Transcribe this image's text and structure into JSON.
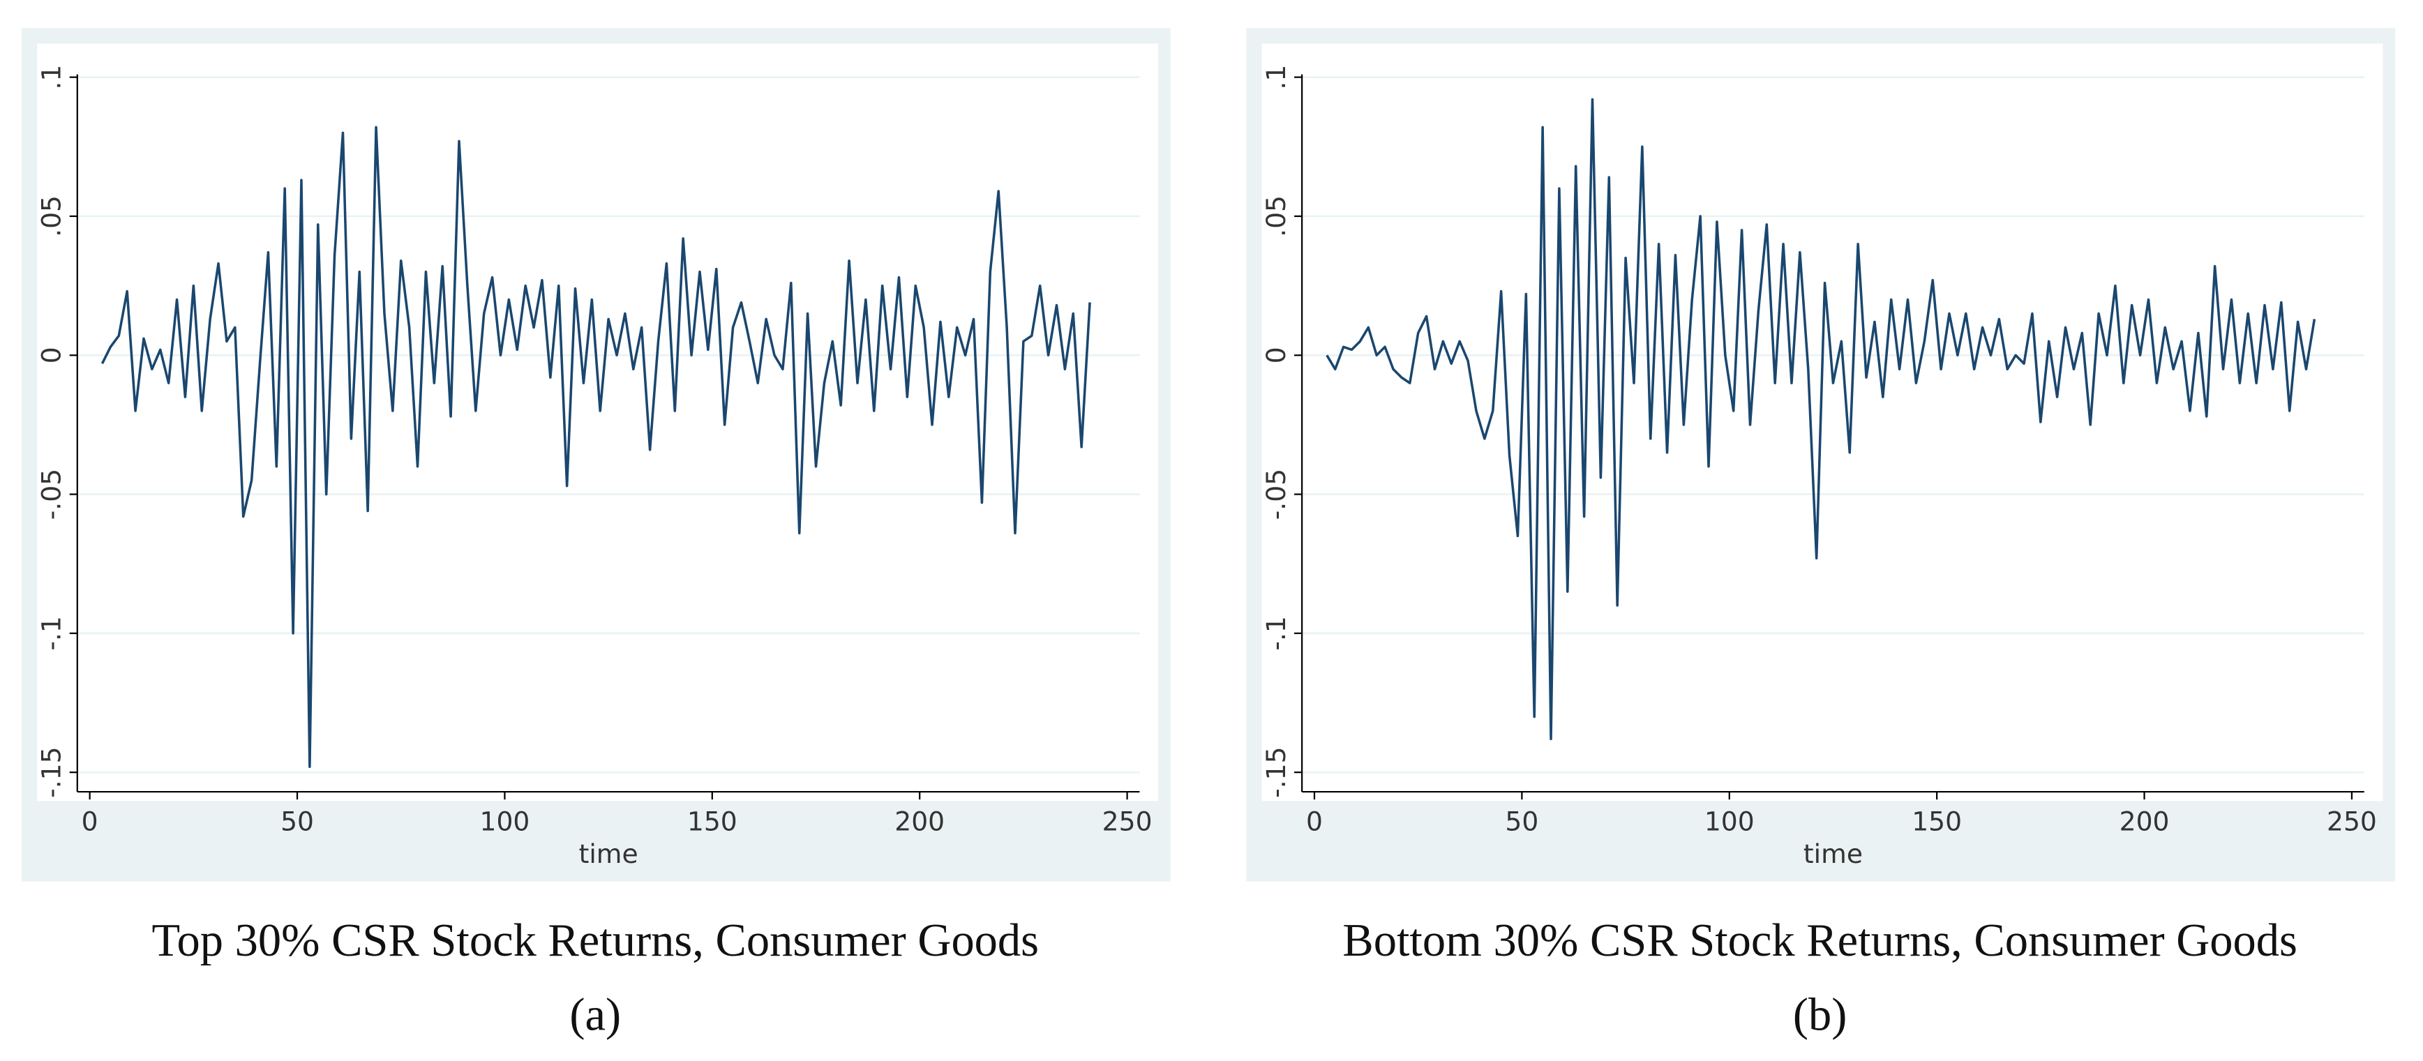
{
  "chart_data": [
    {
      "type": "line",
      "xlabel": "time",
      "caption": "Top 30% CSR Stock Returns, Consumer Goods",
      "sublabel": "(a)",
      "xlim": [
        -3,
        253
      ],
      "ylim": [
        -0.157,
        0.101
      ],
      "xticks": [
        0,
        50,
        100,
        150,
        200,
        250
      ],
      "yticks": [
        {
          "value": -0.15,
          "label": "-.15"
        },
        {
          "value": -0.1,
          "label": "-.1"
        },
        {
          "value": -0.05,
          "label": "-.05"
        },
        0,
        {
          "value": 0.05,
          "label": ".05"
        },
        {
          "value": 0.1,
          "label": ".1"
        }
      ],
      "grid": true,
      "x": [
        3,
        5,
        7,
        9,
        11,
        13,
        15,
        17,
        19,
        21,
        23,
        25,
        27,
        29,
        31,
        33,
        35,
        37,
        39,
        41,
        43,
        45,
        47,
        49,
        51,
        53,
        55,
        57,
        59,
        61,
        63,
        65,
        67,
        69,
        71,
        73,
        75,
        77,
        79,
        81,
        83,
        85,
        87,
        89,
        91,
        93,
        95,
        97,
        99,
        101,
        103,
        105,
        107,
        109,
        111,
        113,
        115,
        117,
        119,
        121,
        123,
        125,
        127,
        129,
        131,
        133,
        135,
        137,
        139,
        141,
        143,
        145,
        147,
        149,
        151,
        153,
        155,
        157,
        159,
        161,
        163,
        165,
        167,
        169,
        171,
        173,
        175,
        177,
        179,
        181,
        183,
        185,
        187,
        189,
        191,
        193,
        195,
        197,
        199,
        201,
        203,
        205,
        207,
        209,
        211,
        213,
        215,
        217,
        219,
        221,
        223,
        225,
        227,
        229,
        231,
        233,
        235,
        237,
        239,
        241
      ],
      "series": [
        {
          "color": "#1a476f",
          "values": [
            -0.003,
            0.003,
            0.007,
            0.023,
            -0.02,
            0.006,
            -0.005,
            0.002,
            -0.01,
            0.02,
            -0.015,
            0.025,
            -0.02,
            0.013,
            0.033,
            0.005,
            0.01,
            -0.058,
            -0.045,
            -0.003,
            0.037,
            -0.04,
            0.06,
            -0.1,
            0.063,
            -0.148,
            0.047,
            -0.05,
            0.036,
            0.08,
            -0.03,
            0.03,
            -0.056,
            0.082,
            0.015,
            -0.02,
            0.034,
            0.01,
            -0.04,
            0.03,
            -0.01,
            0.032,
            -0.022,
            0.077,
            0.025,
            -0.02,
            0.015,
            0.028,
            0.0,
            0.02,
            0.002,
            0.025,
            0.01,
            0.027,
            -0.008,
            0.025,
            -0.047,
            0.024,
            -0.01,
            0.02,
            -0.02,
            0.013,
            0.0,
            0.015,
            -0.005,
            0.01,
            -0.034,
            0.005,
            0.033,
            -0.02,
            0.042,
            0.0,
            0.03,
            0.002,
            0.031,
            -0.025,
            0.01,
            0.019,
            0.005,
            -0.01,
            0.013,
            0.0,
            -0.005,
            0.026,
            -0.064,
            0.015,
            -0.04,
            -0.01,
            0.005,
            -0.018,
            0.034,
            -0.01,
            0.02,
            -0.02,
            0.025,
            -0.005,
            0.028,
            -0.015,
            0.025,
            0.01,
            -0.025,
            0.012,
            -0.015,
            0.01,
            0.0,
            0.013,
            -0.053,
            0.03,
            0.059,
            0.01,
            -0.064,
            0.005,
            0.007,
            0.025,
            0.0,
            0.018,
            -0.005,
            0.015,
            -0.033,
            0.019
          ]
        }
      ]
    },
    {
      "type": "line",
      "xlabel": "time",
      "caption": "Bottom 30% CSR Stock Returns, Consumer Goods",
      "sublabel": "(b)",
      "xlim": [
        -3,
        253
      ],
      "ylim": [
        -0.157,
        0.101
      ],
      "xticks": [
        0,
        50,
        100,
        150,
        200,
        250
      ],
      "yticks": [
        {
          "value": -0.15,
          "label": "-.15"
        },
        {
          "value": -0.1,
          "label": "-.1"
        },
        {
          "value": -0.05,
          "label": "-.05"
        },
        0,
        {
          "value": 0.05,
          "label": ".05"
        },
        {
          "value": 0.1,
          "label": ".1"
        }
      ],
      "grid": true,
      "x": [
        3,
        5,
        7,
        9,
        11,
        13,
        15,
        17,
        19,
        21,
        23,
        25,
        27,
        29,
        31,
        33,
        35,
        37,
        39,
        41,
        43,
        45,
        47,
        49,
        51,
        53,
        55,
        57,
        59,
        61,
        63,
        65,
        67,
        69,
        71,
        73,
        75,
        77,
        79,
        81,
        83,
        85,
        87,
        89,
        91,
        93,
        95,
        97,
        99,
        101,
        103,
        105,
        107,
        109,
        111,
        113,
        115,
        117,
        119,
        121,
        123,
        125,
        127,
        129,
        131,
        133,
        135,
        137,
        139,
        141,
        143,
        145,
        147,
        149,
        151,
        153,
        155,
        157,
        159,
        161,
        163,
        165,
        167,
        169,
        171,
        173,
        175,
        177,
        179,
        181,
        183,
        185,
        187,
        189,
        191,
        193,
        195,
        197,
        199,
        201,
        203,
        205,
        207,
        209,
        211,
        213,
        215,
        217,
        219,
        221,
        223,
        225,
        227,
        229,
        231,
        233,
        235,
        237,
        239,
        241
      ],
      "series": [
        {
          "color": "#1a476f",
          "values": [
            0.0,
            -0.005,
            0.003,
            0.002,
            0.005,
            0.01,
            0.0,
            0.003,
            -0.005,
            -0.008,
            -0.01,
            0.008,
            0.014,
            -0.005,
            0.005,
            -0.003,
            0.005,
            -0.002,
            -0.02,
            -0.03,
            -0.02,
            0.023,
            -0.036,
            -0.065,
            0.022,
            -0.13,
            0.082,
            -0.138,
            0.06,
            -0.085,
            0.068,
            -0.058,
            0.092,
            -0.044,
            0.064,
            -0.09,
            0.035,
            -0.01,
            0.075,
            -0.03,
            0.04,
            -0.035,
            0.036,
            -0.025,
            0.02,
            0.05,
            -0.04,
            0.048,
            0.0,
            -0.02,
            0.045,
            -0.025,
            0.016,
            0.047,
            -0.01,
            0.04,
            -0.01,
            0.037,
            -0.005,
            -0.073,
            0.026,
            -0.01,
            0.005,
            -0.035,
            0.04,
            -0.008,
            0.012,
            -0.015,
            0.02,
            -0.005,
            0.02,
            -0.01,
            0.005,
            0.027,
            -0.005,
            0.015,
            0.0,
            0.015,
            -0.005,
            0.01,
            0.0,
            0.013,
            -0.005,
            0.0,
            -0.003,
            0.015,
            -0.024,
            0.005,
            -0.015,
            0.01,
            -0.005,
            0.008,
            -0.025,
            0.015,
            0.0,
            0.025,
            -0.01,
            0.018,
            0.0,
            0.02,
            -0.01,
            0.01,
            -0.005,
            0.005,
            -0.02,
            0.008,
            -0.022,
            0.032,
            -0.005,
            0.02,
            -0.01,
            0.015,
            -0.01,
            0.018,
            -0.005,
            0.019,
            -0.02,
            0.012,
            -0.005,
            0.013
          ]
        }
      ]
    }
  ]
}
